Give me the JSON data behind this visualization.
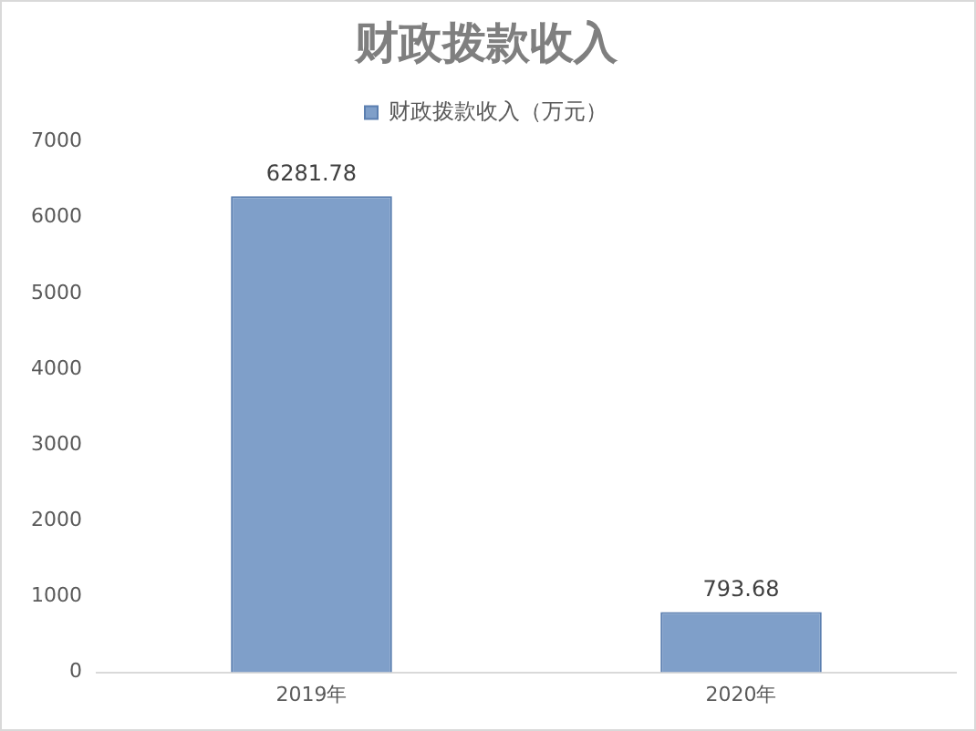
{
  "chart_data": {
    "type": "bar",
    "title": "财政拨款收入",
    "categories": [
      "2019年",
      "2020年"
    ],
    "series": [
      {
        "name": "财政拨款收入（万元）",
        "color": "#7f9fc9",
        "values": [
          6281.78,
          793.68
        ]
      }
    ],
    "ylim": [
      0,
      7000
    ],
    "yticks": [
      0,
      1000,
      2000,
      3000,
      4000,
      5000,
      6000,
      7000
    ],
    "grid": false,
    "legend": "top",
    "data_labels": true
  }
}
